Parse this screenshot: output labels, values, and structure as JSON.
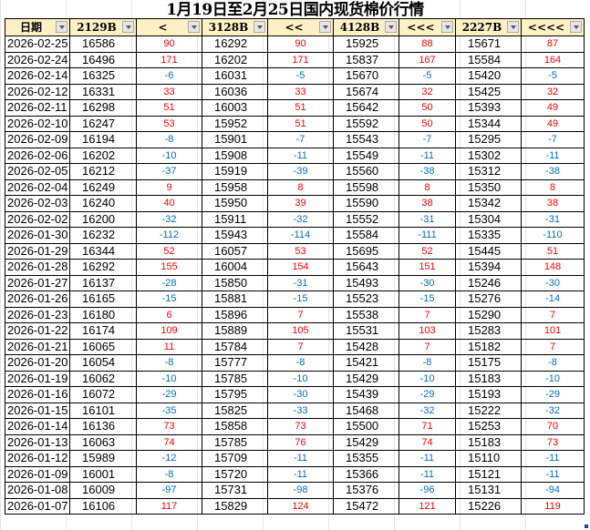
{
  "title": "1月19日至2月25日国内现货棉价行情",
  "colors": {
    "positive": "#ff0000",
    "negative": "#0070c0",
    "header_bg": "#fdf0c4"
  },
  "headers": [
    "日期",
    "2129B",
    "<",
    "3128B",
    "<<",
    "4128B",
    "<<<",
    "2227B",
    "<<<<"
  ],
  "rows": [
    [
      "2026-02-25",
      "16586",
      "90",
      "16292",
      "90",
      "15925",
      "88",
      "15671",
      "87"
    ],
    [
      "2026-02-24",
      "16496",
      "171",
      "16202",
      "171",
      "15837",
      "167",
      "15584",
      "164"
    ],
    [
      "2026-02-14",
      "16325",
      "-6",
      "16031",
      "-5",
      "15670",
      "-5",
      "15420",
      "-5"
    ],
    [
      "2026-02-12",
      "16331",
      "33",
      "16036",
      "33",
      "15674",
      "32",
      "15425",
      "32"
    ],
    [
      "2026-02-11",
      "16298",
      "51",
      "16003",
      "51",
      "15642",
      "50",
      "15393",
      "49"
    ],
    [
      "2026-02-10",
      "16247",
      "53",
      "15952",
      "51",
      "15592",
      "50",
      "15344",
      "49"
    ],
    [
      "2026-02-09",
      "16194",
      "-8",
      "15901",
      "-7",
      "15543",
      "-7",
      "15295",
      "-7"
    ],
    [
      "2026-02-06",
      "16202",
      "-10",
      "15908",
      "-11",
      "15549",
      "-11",
      "15302",
      "-11"
    ],
    [
      "2026-02-05",
      "16212",
      "-37",
      "15919",
      "-39",
      "15560",
      "-38",
      "15312",
      "-38"
    ],
    [
      "2026-02-04",
      "16249",
      "9",
      "15958",
      "8",
      "15598",
      "8",
      "15350",
      "8"
    ],
    [
      "2026-02-03",
      "16240",
      "40",
      "15950",
      "39",
      "15590",
      "38",
      "15342",
      "38"
    ],
    [
      "2026-02-02",
      "16200",
      "-32",
      "15911",
      "-32",
      "15552",
      "-31",
      "15304",
      "-31"
    ],
    [
      "2026-01-30",
      "16232",
      "-112",
      "15943",
      "-114",
      "15584",
      "-111",
      "15335",
      "-110"
    ],
    [
      "2026-01-29",
      "16344",
      "52",
      "16057",
      "53",
      "15695",
      "52",
      "15445",
      "51"
    ],
    [
      "2026-01-28",
      "16292",
      "155",
      "16004",
      "154",
      "15643",
      "151",
      "15394",
      "148"
    ],
    [
      "2026-01-27",
      "16137",
      "-28",
      "15850",
      "-31",
      "15493",
      "-30",
      "15246",
      "-30"
    ],
    [
      "2026-01-26",
      "16165",
      "-15",
      "15881",
      "-15",
      "15523",
      "-15",
      "15276",
      "-14"
    ],
    [
      "2026-01-23",
      "16180",
      "6",
      "15896",
      "7",
      "15538",
      "7",
      "15290",
      "7"
    ],
    [
      "2026-01-22",
      "16174",
      "109",
      "15889",
      "105",
      "15531",
      "103",
      "15283",
      "101"
    ],
    [
      "2026-01-21",
      "16065",
      "11",
      "15784",
      "7",
      "15428",
      "7",
      "15182",
      "7"
    ],
    [
      "2026-01-20",
      "16054",
      "-8",
      "15777",
      "-8",
      "15421",
      "-8",
      "15175",
      "-8"
    ],
    [
      "2026-01-19",
      "16062",
      "-10",
      "15785",
      "-10",
      "15429",
      "-10",
      "15183",
      "-10"
    ],
    [
      "2026-01-16",
      "16072",
      "-29",
      "15795",
      "-30",
      "15439",
      "-29",
      "15193",
      "-29"
    ],
    [
      "2026-01-15",
      "16101",
      "-35",
      "15825",
      "-33",
      "15468",
      "-32",
      "15222",
      "-32"
    ],
    [
      "2026-01-14",
      "16136",
      "73",
      "15858",
      "73",
      "15500",
      "71",
      "15253",
      "70"
    ],
    [
      "2026-01-13",
      "16063",
      "74",
      "15785",
      "76",
      "15429",
      "74",
      "15183",
      "73"
    ],
    [
      "2026-01-12",
      "15989",
      "-12",
      "15709",
      "-11",
      "15355",
      "-11",
      "15110",
      "-11"
    ],
    [
      "2026-01-09",
      "16001",
      "-8",
      "15720",
      "-11",
      "15366",
      "-11",
      "15121",
      "-11"
    ],
    [
      "2026-01-08",
      "16009",
      "-97",
      "15731",
      "-98",
      "15376",
      "-96",
      "15131",
      "-94"
    ],
    [
      "2026-01-07",
      "16106",
      "117",
      "15829",
      "124",
      "15472",
      "121",
      "15226",
      "119"
    ]
  ]
}
